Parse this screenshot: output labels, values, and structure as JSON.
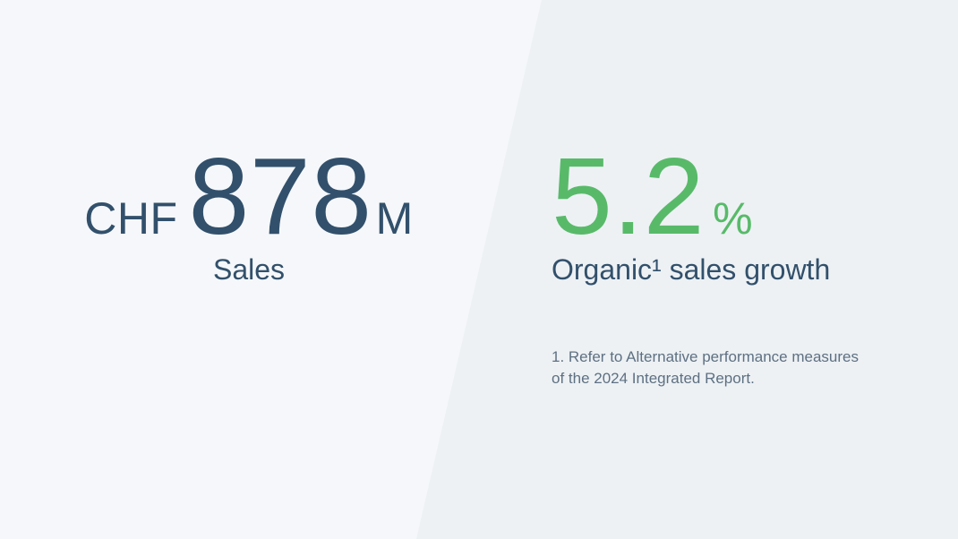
{
  "slide": {
    "left_stat": {
      "currency": "CHF",
      "value": "878",
      "unit": "M",
      "label": "Sales"
    },
    "right_stat": {
      "value": "5.2",
      "unit": "%",
      "label": "Organic¹ sales growth",
      "footnote": "1. Refer to Alternative performance measures of the 2024 Integrated Report."
    },
    "colors": {
      "left_background": "#f5f7fa",
      "right_background": "#edf1f4",
      "primary_text": "#32506b",
      "accent_green": "#58ba69",
      "footnote_text": "#5e7082"
    }
  }
}
